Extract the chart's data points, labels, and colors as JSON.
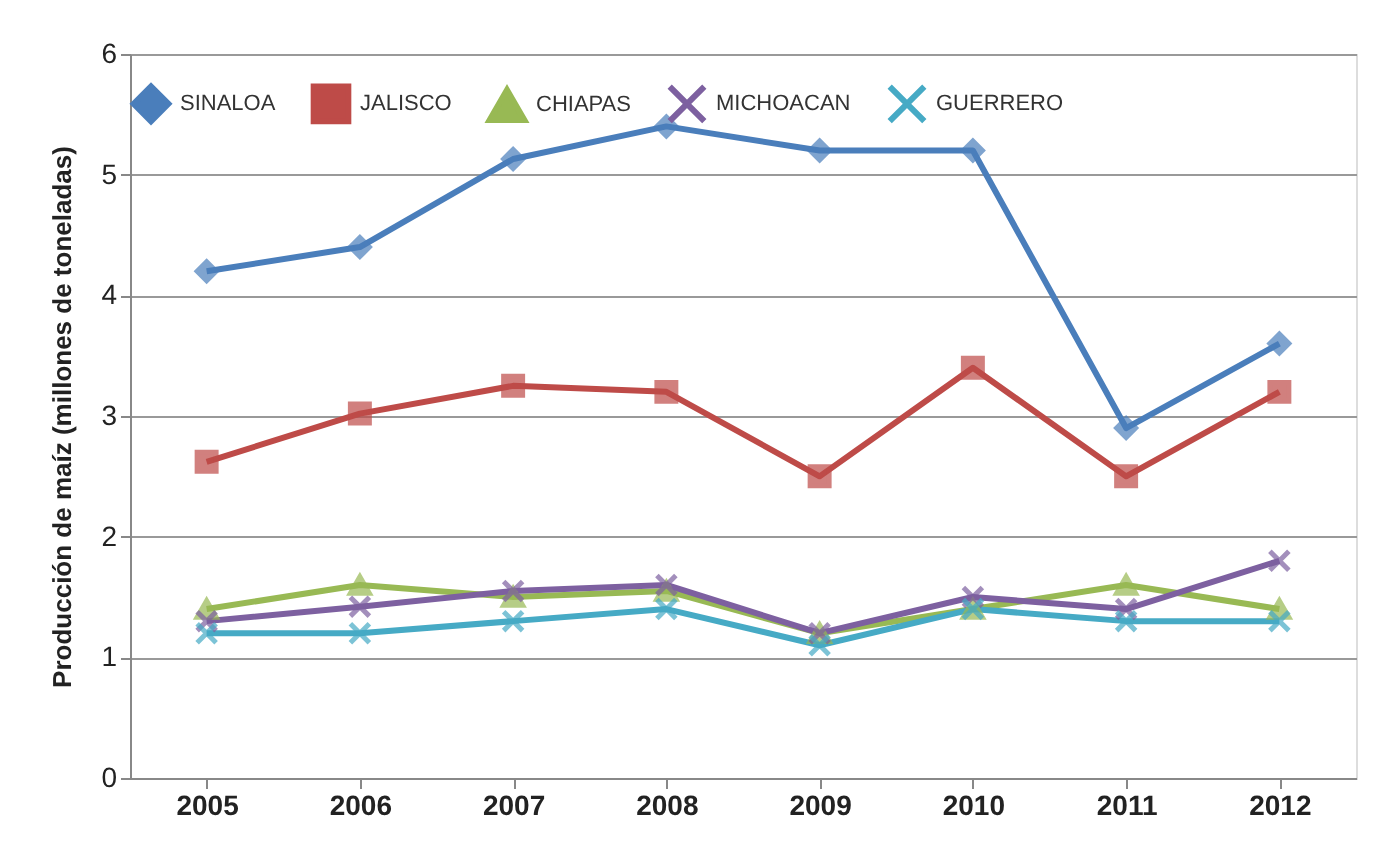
{
  "chart_data": {
    "type": "line",
    "ylabel": "Producción de maíz (millones de toneladas)",
    "categories": [
      "2005",
      "2006",
      "2007",
      "2008",
      "2009",
      "2010",
      "2011",
      "2012"
    ],
    "series": [
      {
        "name": "SINALOA",
        "color": "#4a7ebb",
        "marker": "diamond",
        "values": [
          4.2,
          4.4,
          5.13,
          5.4,
          5.2,
          5.2,
          2.9,
          3.6
        ]
      },
      {
        "name": "JALISCO",
        "color": "#be4b48",
        "marker": "square",
        "values": [
          2.62,
          3.02,
          3.25,
          3.2,
          2.5,
          3.4,
          2.5,
          3.2
        ]
      },
      {
        "name": "CHIAPAS",
        "color": "#98b954",
        "marker": "triangle",
        "values": [
          1.4,
          1.6,
          1.5,
          1.55,
          1.2,
          1.4,
          1.6,
          1.4
        ]
      },
      {
        "name": "MICHOACAN",
        "color": "#7d60a0",
        "marker": "cross",
        "values": [
          1.3,
          1.42,
          1.55,
          1.6,
          1.2,
          1.5,
          1.4,
          1.8
        ]
      },
      {
        "name": "GUERRERO",
        "color": "#46aac5",
        "marker": "cross",
        "values": [
          1.2,
          1.2,
          1.3,
          1.4,
          1.1,
          1.4,
          1.3,
          1.3
        ]
      }
    ],
    "ylim": [
      0,
      6
    ],
    "yticks": [
      0,
      1,
      2,
      3,
      4,
      5,
      6
    ],
    "grid": "y",
    "legend": "top",
    "line_style": "solid"
  }
}
